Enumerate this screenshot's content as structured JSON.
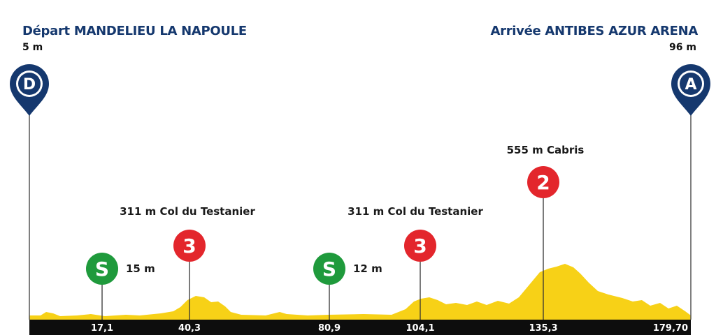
{
  "start": {
    "label": "Départ MANDELIEU LA NAPOULE",
    "altitude": "5 m",
    "pin_letter": "D"
  },
  "finish": {
    "label": "Arrivée ANTIBES AZUR ARENA",
    "altitude": "96 m",
    "pin_letter": "A"
  },
  "markers": [
    {
      "type": "sprint",
      "symbol": "S",
      "label": "15 m",
      "km": "17,1"
    },
    {
      "type": "climb",
      "symbol": "3",
      "label": "311 m Col du Testanier",
      "km": "40,3"
    },
    {
      "type": "sprint",
      "symbol": "S",
      "label": "12 m",
      "km": "80,9"
    },
    {
      "type": "climb",
      "symbol": "3",
      "label": "311 m Col du Testanier",
      "km": "104,1"
    },
    {
      "type": "climb",
      "symbol": "2",
      "label": "555 m Cabris",
      "km": "135,3"
    }
  ],
  "total_km": "179,70",
  "colors": {
    "navy": "#15386e",
    "profile": "#f7d117",
    "sprint": "#1f9a3c",
    "climb": "#e3262c",
    "axis": "#0d0d0d"
  }
}
